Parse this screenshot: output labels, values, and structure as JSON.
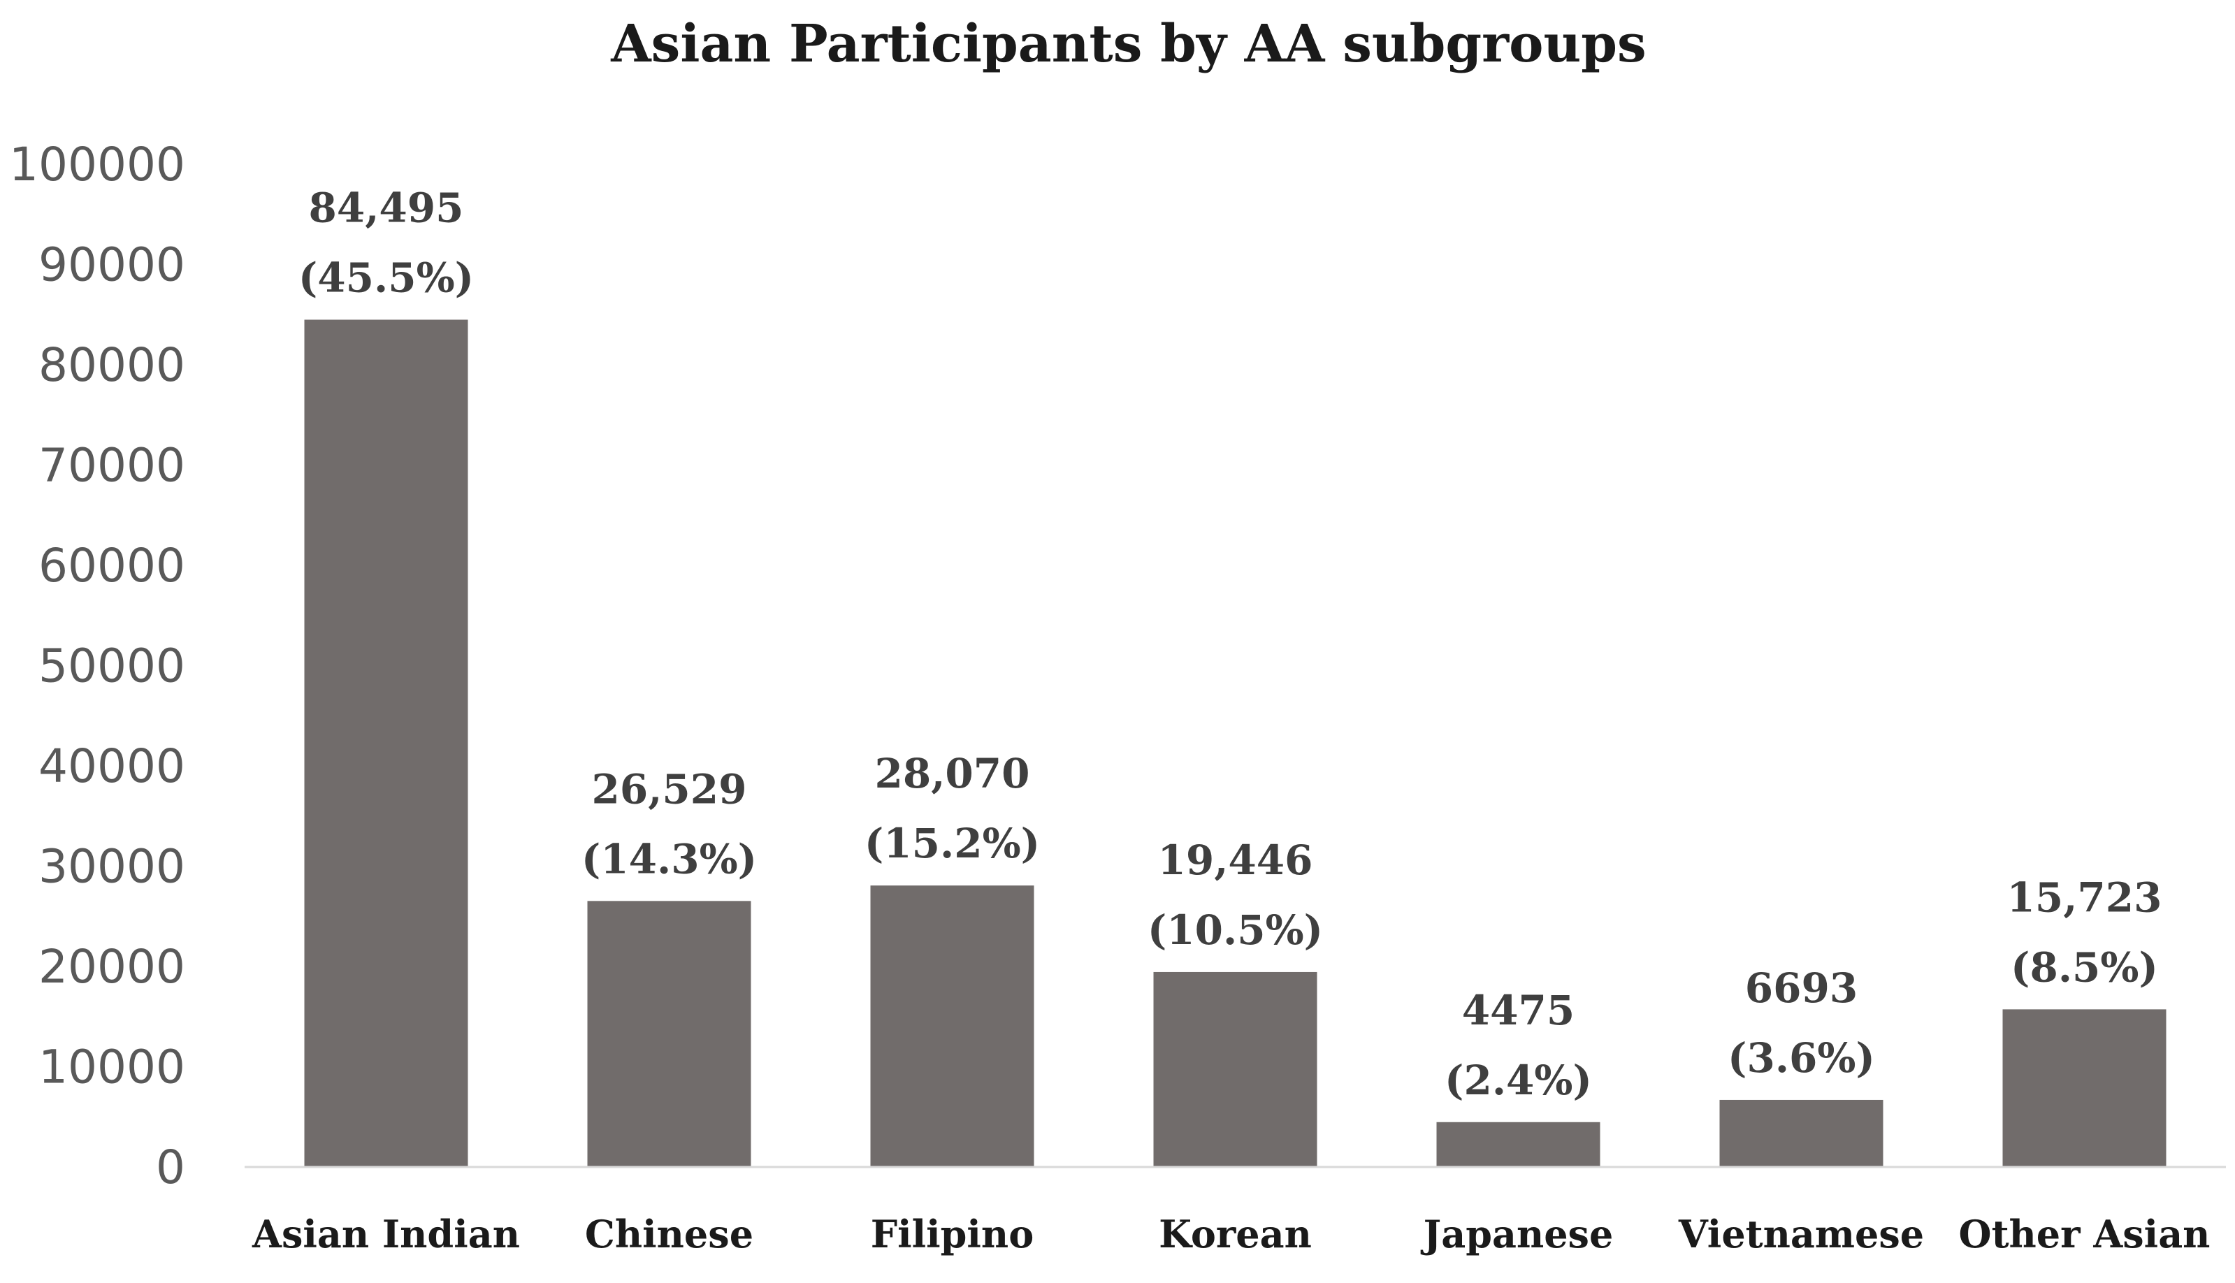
{
  "chart_data": {
    "type": "bar",
    "title": "Asian Participants by AA subgroups",
    "xlabel": "",
    "ylabel": "",
    "categories": [
      "Asian Indian",
      "Chinese",
      "Filipino",
      "Korean",
      "Japanese",
      "Vietnamese",
      "Other Asian"
    ],
    "values": [
      84495,
      26529,
      28070,
      19446,
      4475,
      6693,
      15723
    ],
    "data_labels": [
      {
        "count": "84,495",
        "percent": "(45.5%)"
      },
      {
        "count": "26,529",
        "percent": "(14.3%)"
      },
      {
        "count": "28,070",
        "percent": "(15.2%)"
      },
      {
        "count": "19,446",
        "percent": "(10.5%)"
      },
      {
        "count": "4475",
        "percent": "(2.4%)"
      },
      {
        "count": "6693",
        "percent": "(3.6%)"
      },
      {
        "count": "15,723",
        "percent": "(8.5%)"
      }
    ],
    "ylim": [
      0,
      100000
    ],
    "yticks": [
      "0",
      "10000",
      "20000",
      "30000",
      "40000",
      "50000",
      "60000",
      "70000",
      "80000",
      "90000",
      "100000"
    ],
    "grid": false,
    "legend": "none",
    "bar_color": "#716c6b"
  }
}
